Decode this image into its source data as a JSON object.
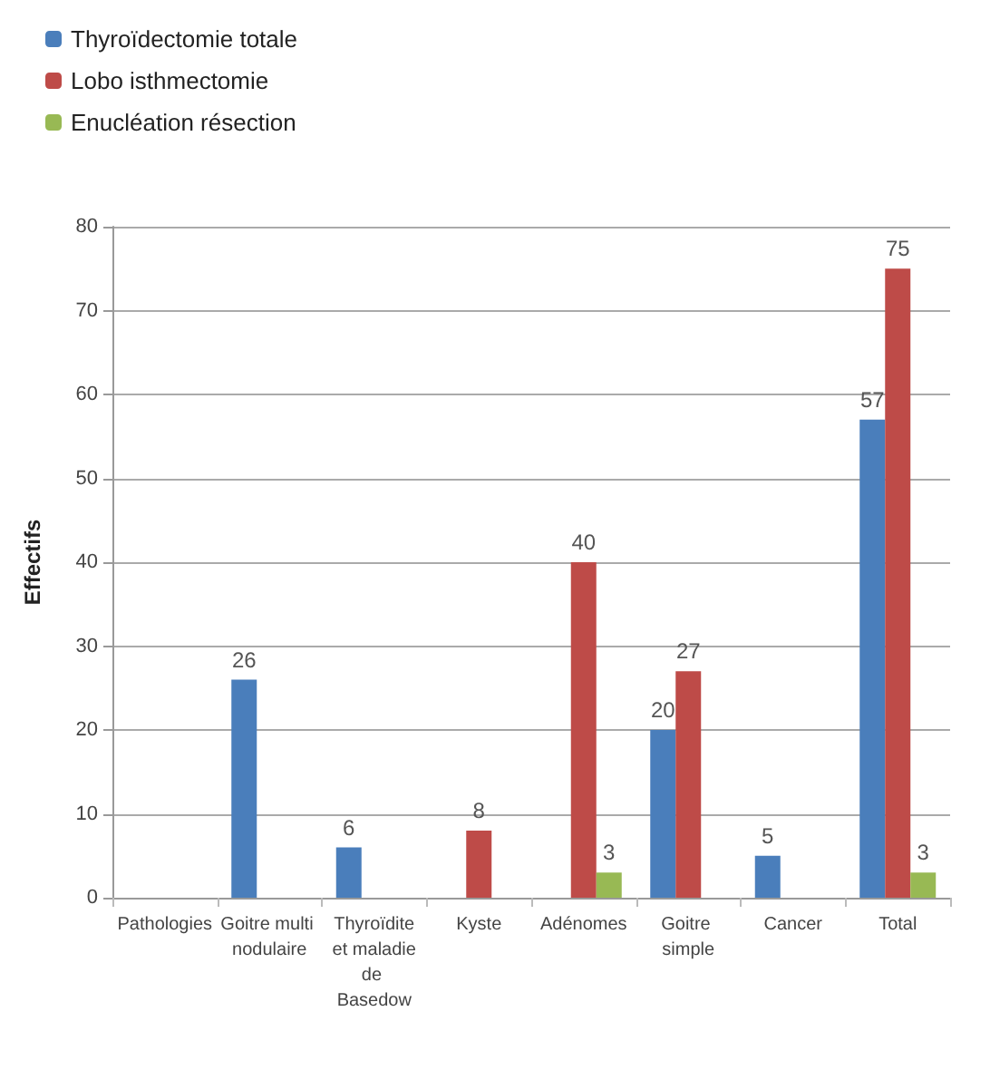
{
  "chart_data": {
    "type": "bar",
    "ylabel": "Effectifs",
    "categories": [
      "Pathologies",
      "Goitre multi nodulaire",
      "Thyroïdite et maladie de Basedow",
      "Kyste",
      "Adénomes",
      "Goitre simple",
      "Cancer",
      "Total"
    ],
    "series": [
      {
        "name": "Thyroïdectomie totale",
        "color": "#4a7ebb",
        "values": [
          null,
          26,
          6,
          null,
          null,
          20,
          5,
          57
        ]
      },
      {
        "name": "Lobo isthmectomie",
        "color": "#be4b48",
        "values": [
          null,
          null,
          null,
          8,
          40,
          27,
          null,
          75
        ]
      },
      {
        "name": "Enucléation résection",
        "color": "#98b954",
        "values": [
          null,
          null,
          null,
          null,
          3,
          null,
          null,
          3
        ]
      }
    ],
    "ylim": [
      0,
      80
    ],
    "yticks": [
      0,
      10,
      20,
      30,
      40,
      50,
      60,
      70,
      80
    ],
    "grid": "y",
    "legend": "top left",
    "data_labels": true
  }
}
